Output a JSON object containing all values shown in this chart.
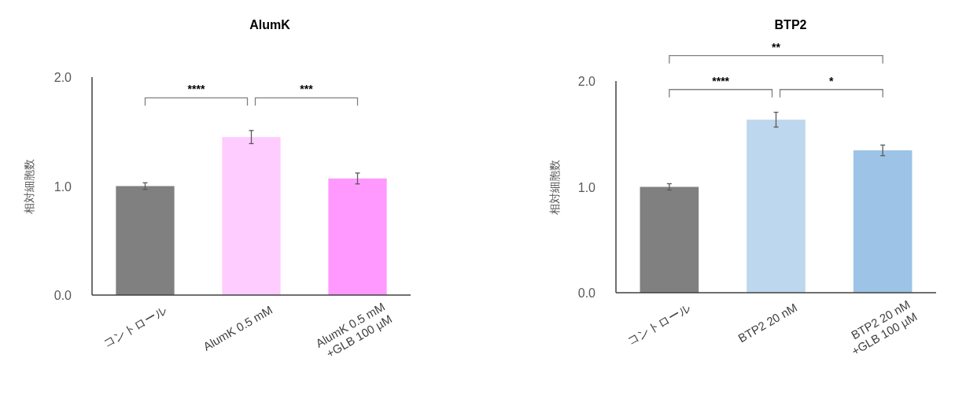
{
  "chart_data": [
    {
      "type": "bar",
      "title": "AlumK",
      "ylabel": "相対細胞数",
      "categories": [
        "コントロール",
        "AlumK 0.5 mM",
        "AlumK 0.5 mM\n+GLB 100 µM"
      ],
      "values": [
        1.0,
        1.45,
        1.07
      ],
      "errors": [
        0.03,
        0.06,
        0.05
      ],
      "colors": [
        "#808080",
        "#ffccff",
        "#ff99ff"
      ],
      "ylim": [
        0,
        2
      ],
      "yticks": [
        {
          "value": 0,
          "label": "0.0"
        },
        {
          "value": 1,
          "label": "1.0"
        },
        {
          "value": 2,
          "label": "2.0"
        }
      ],
      "annotations": [
        "****",
        "***"
      ]
    },
    {
      "type": "bar",
      "title": "BTP2",
      "ylabel": "相対細胞数",
      "categories": [
        "コントロール",
        "BTP2 20 nM",
        "BTP2 20 nM\n+GLB 100 µM"
      ],
      "values": [
        1.0,
        1.635,
        1.345
      ],
      "errors": [
        0.03,
        0.07,
        0.05
      ],
      "colors": [
        "#808080",
        "#bdd7ee",
        "#9dc3e6"
      ],
      "ylim": [
        0,
        2
      ],
      "yticks": [
        {
          "value": 0,
          "label": "0.0"
        },
        {
          "value": 1,
          "label": "1.0"
        },
        {
          "value": 2,
          "label": "2.0"
        }
      ],
      "annotations": [
        "****",
        "*",
        "**"
      ]
    }
  ]
}
